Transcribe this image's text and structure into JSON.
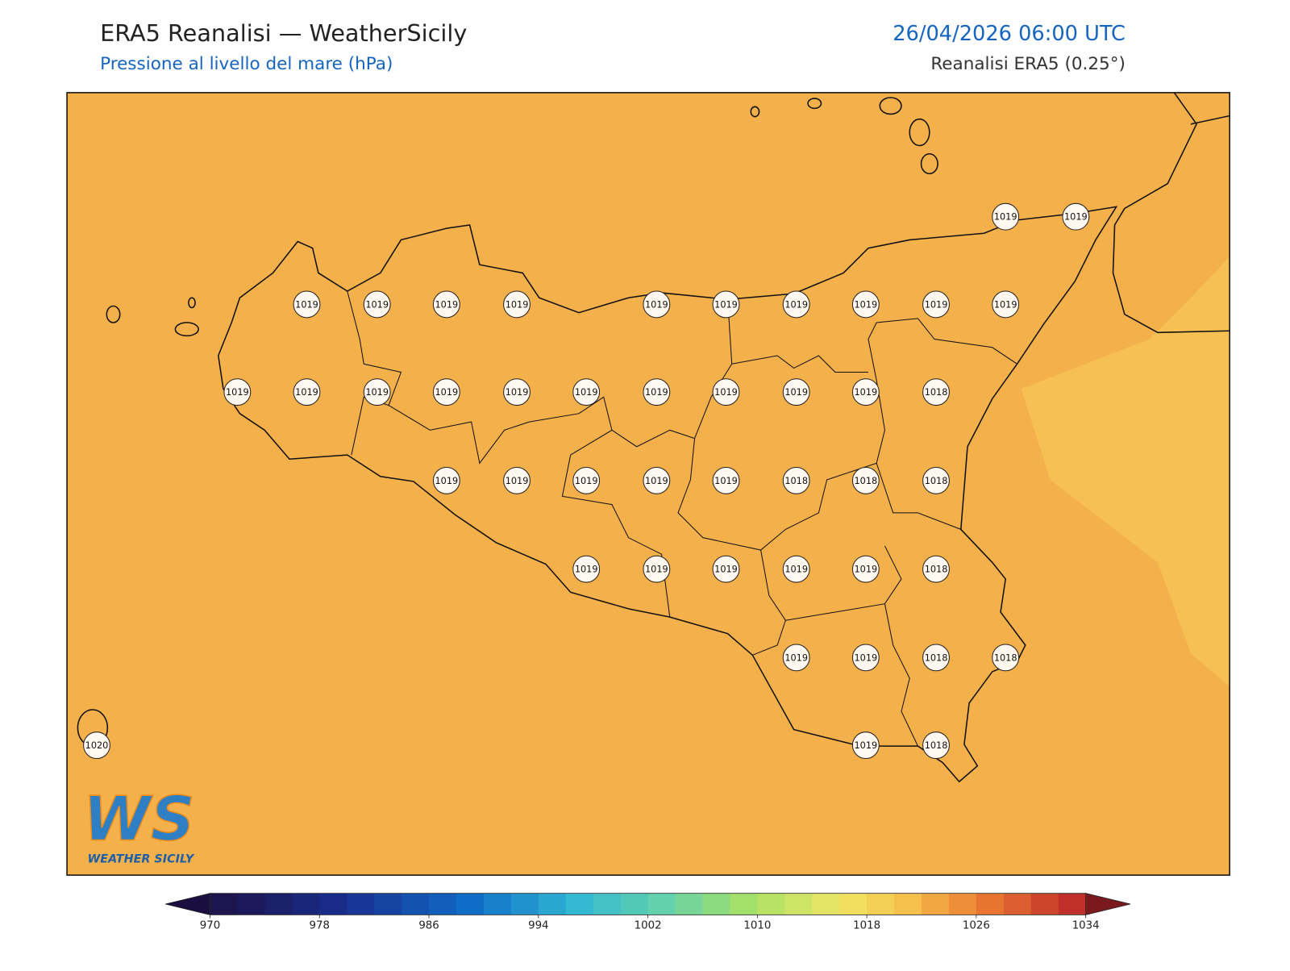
{
  "header": {
    "title": "ERA5 Reanalisi — WeatherSicily",
    "subtitle": "Pressione al livello del mare (hPa)",
    "datetime": "26/04/2026 06:00 UTC",
    "source": "Reanalisi ERA5 (0.25°)"
  },
  "map": {
    "stations": [
      1019,
      1019,
      1019,
      1019,
      1019,
      1019,
      1019,
      1019,
      1019,
      1019,
      1019,
      1019,
      1019,
      1019,
      1019,
      1019,
      1019,
      1019,
      1019,
      1019,
      1019,
      1019,
      1018,
      1019,
      1019,
      1019,
      1019,
      1019,
      1018,
      1018,
      1018,
      1019,
      1019,
      1019,
      1019,
      1019,
      1018,
      1019,
      1019,
      1018,
      1018,
      1020,
      1019,
      1018
    ]
  },
  "colorbar": {
    "ticks": [
      970,
      978,
      986,
      994,
      1002,
      1010,
      1018,
      1026,
      1034
    ]
  },
  "logo": {
    "mark": "WS",
    "text": "WEATHER SICILY"
  }
}
